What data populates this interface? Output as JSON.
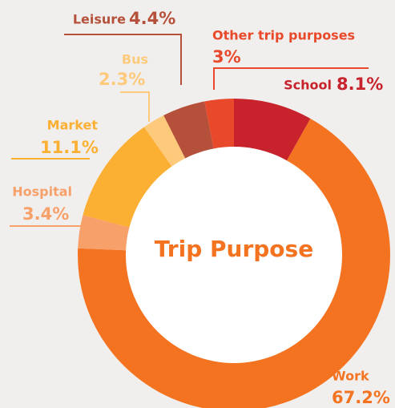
{
  "chart_data": {
    "type": "donut",
    "title": "Trip Purpose",
    "categories": [
      "School",
      "Work",
      "Hospital",
      "Market",
      "Bus",
      "Leisure",
      "Other trip purposes"
    ],
    "values": [
      8.1,
      67.2,
      3.4,
      11.1,
      2.3,
      4.4,
      3
    ],
    "value_labels": [
      "8.1%",
      "67.2%",
      "3.4%",
      "11.1%",
      "2.3%",
      "4.4%",
      "3%"
    ],
    "colors": [
      "#c8232c",
      "#f47320",
      "#f7a06a",
      "#fbb034",
      "#fdc97a",
      "#b5503a",
      "#e8492a"
    ]
  }
}
